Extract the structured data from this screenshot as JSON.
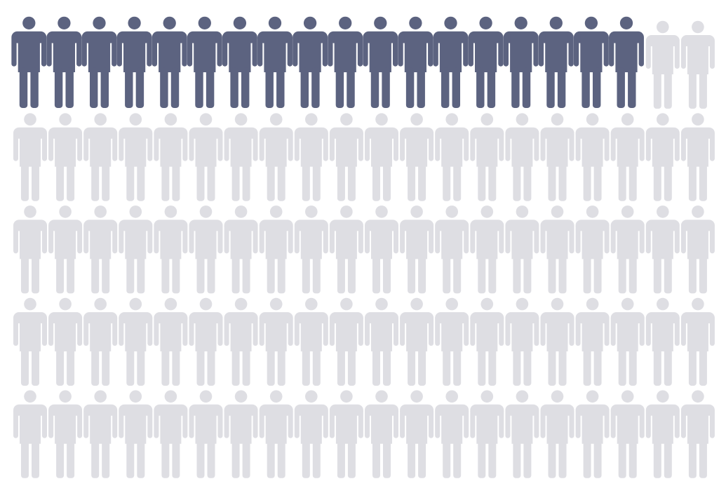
{
  "chart_data": {
    "type": "pictograph",
    "total": 100,
    "filled": 18,
    "columns": 20,
    "rows": 5,
    "icon": "person-icon",
    "colors": {
      "filled": "#5c6380",
      "empty": "#dedee3"
    }
  }
}
